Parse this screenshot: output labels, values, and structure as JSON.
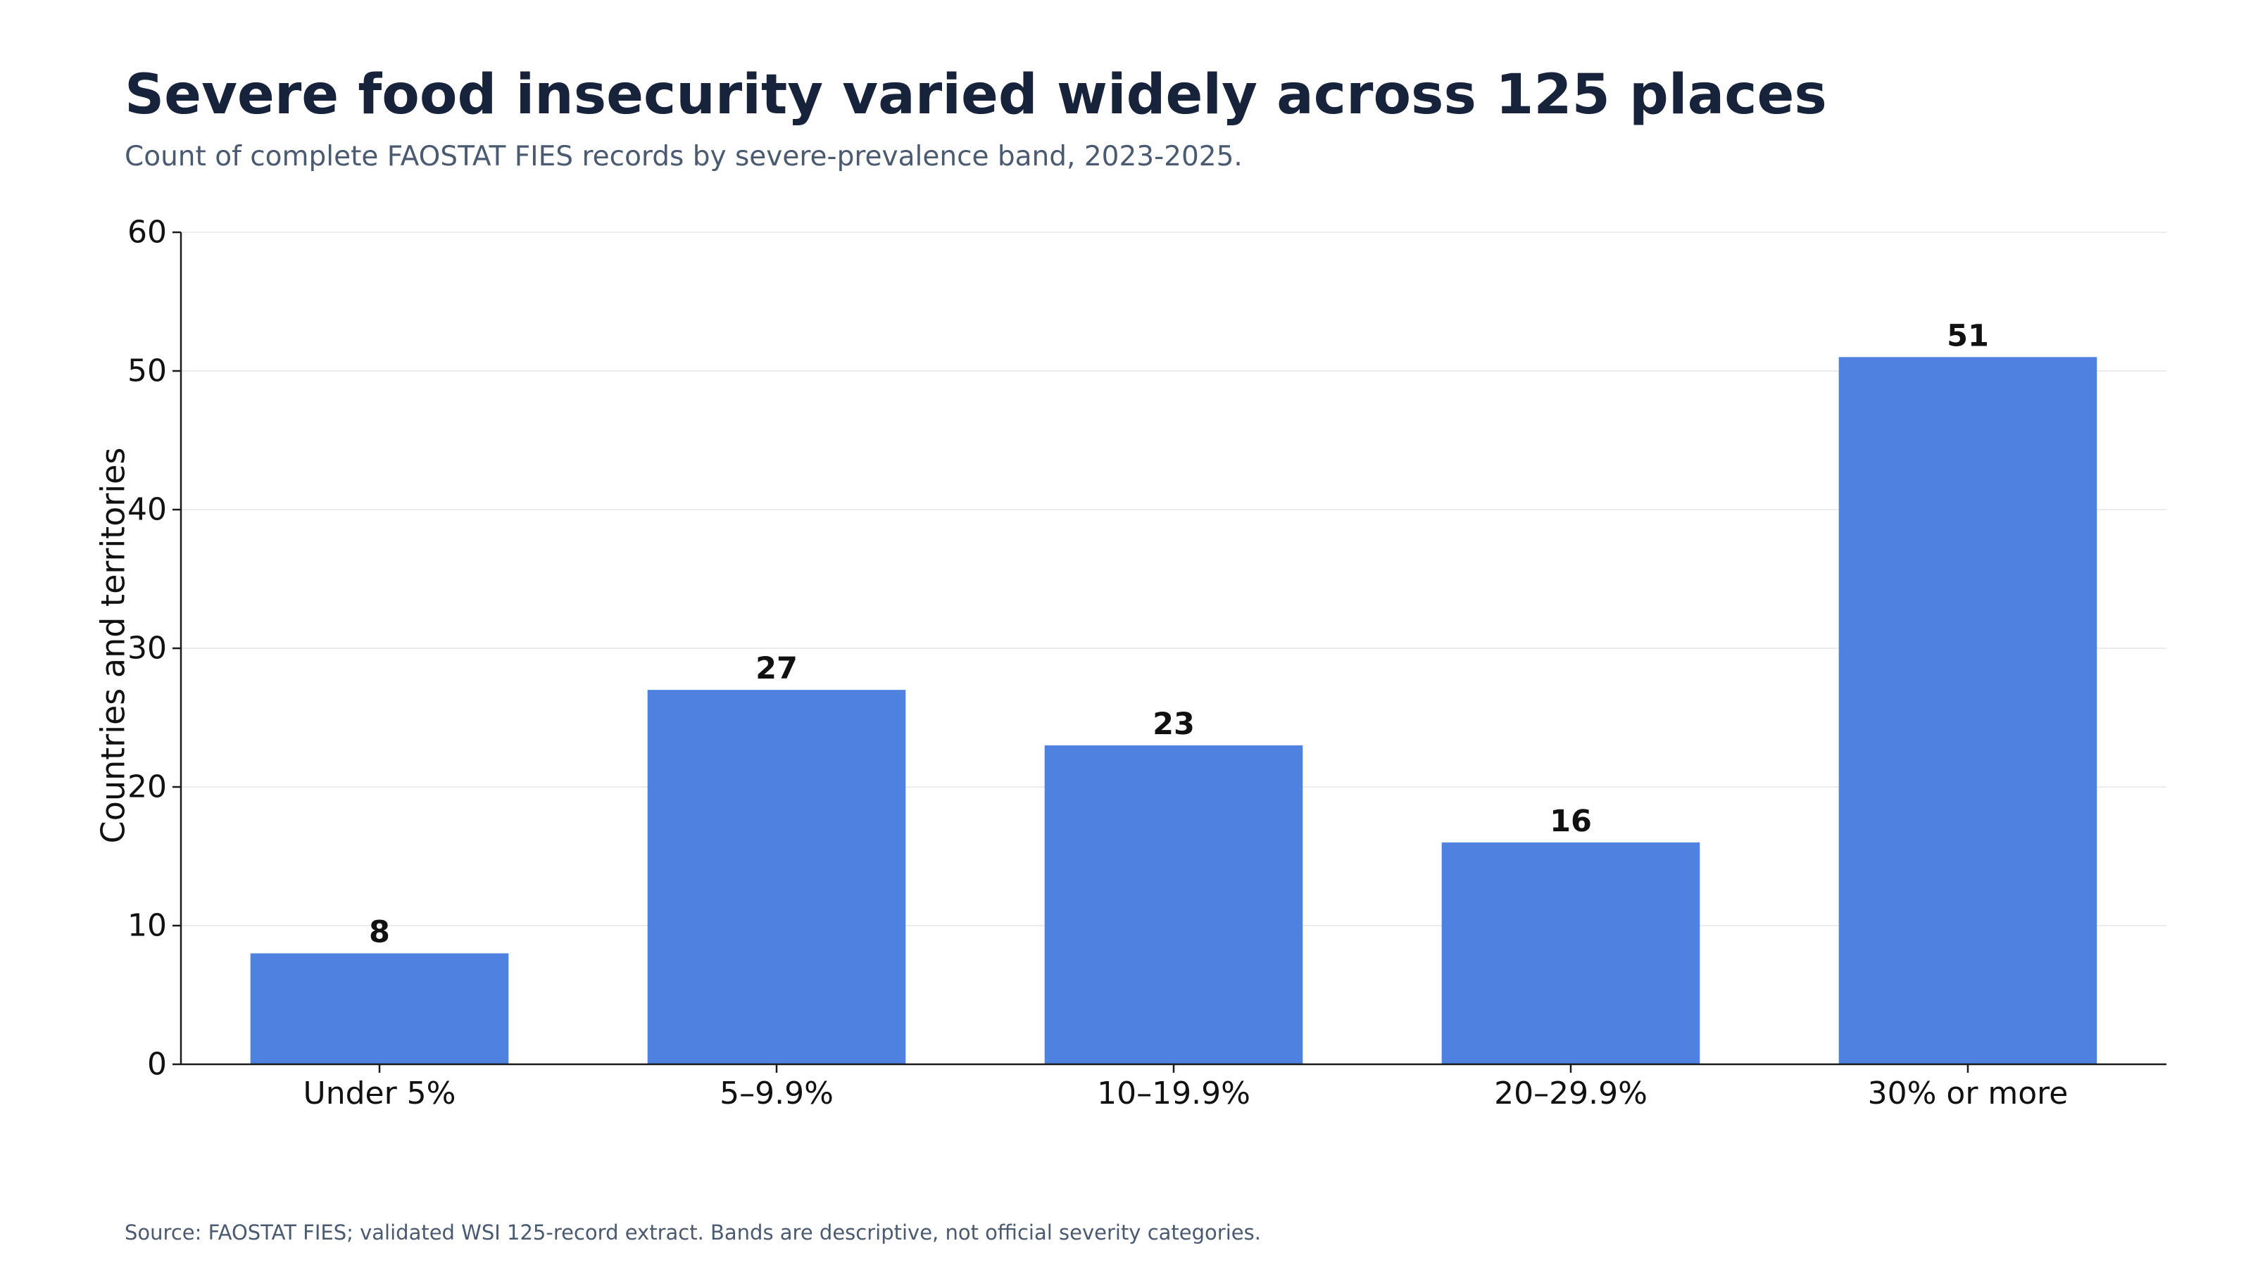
{
  "header": {
    "title": "Severe food insecurity varied widely across 125 places",
    "subtitle": "Count of complete FAOSTAT FIES records by severe-prevalence band, 2023-2025."
  },
  "footer": {
    "source": "Source: FAOSTAT FIES; validated WSI 125-record extract. Bands are descriptive, not official severity categories."
  },
  "chart_data": {
    "type": "bar",
    "title": "Severe food insecurity varied widely across 125 places",
    "subtitle": "Count of complete FAOSTAT FIES records by severe-prevalence band, 2023-2025.",
    "xlabel": "",
    "ylabel": "Countries and territories",
    "categories": [
      "Under 5%",
      "5–9.9%",
      "10–19.9%",
      "20–29.9%",
      "30% or more"
    ],
    "values": [
      8,
      27,
      23,
      16,
      51
    ],
    "data_labels": [
      "8",
      "27",
      "23",
      "16",
      "51"
    ],
    "ylim": [
      0,
      60
    ],
    "yticks": [
      0,
      10,
      20,
      30,
      40,
      50,
      60
    ],
    "grid": "horizontal",
    "legend": "none"
  },
  "colors": {
    "bar": "#4f82e0",
    "title": "#17223b",
    "subtitle": "#4a5a70",
    "axis": "#1a1a1a",
    "grid": "#ececec",
    "text": "#111111"
  }
}
